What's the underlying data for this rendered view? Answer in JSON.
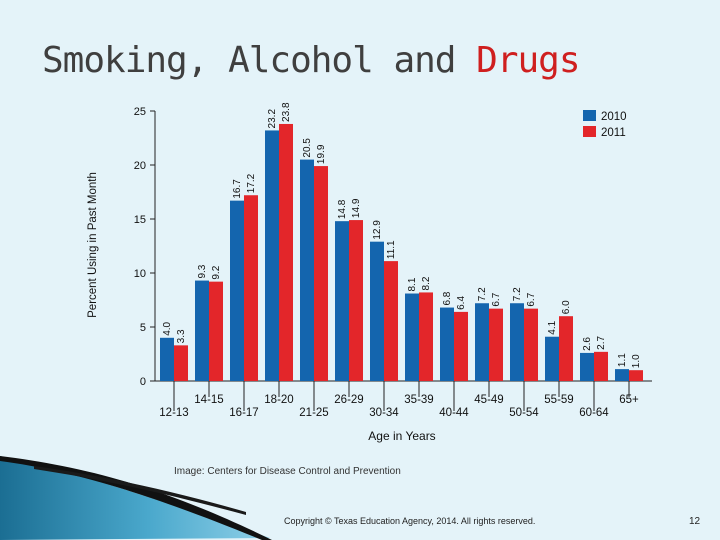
{
  "slide": {
    "title_main": "Smoking, Alcohol and ",
    "title_accent": "Drugs",
    "copyright": "Copyright © Texas Education Agency, 2014. All rights reserved.",
    "page_number": "12"
  },
  "colors": {
    "series_2010": "#1465ae",
    "series_2011": "#e3262a",
    "title_accent": "#cf1f1f",
    "background": "#e4f3f9"
  },
  "chart_data": {
    "type": "bar",
    "title": "",
    "ylabel": "Percent Using in Past Month",
    "xlabel": "Age in Years",
    "source": "Image: Centers for Disease Control and Prevention",
    "ylim": [
      0,
      25
    ],
    "yticks": [
      0,
      5,
      10,
      15,
      20,
      25
    ],
    "categories": [
      "12-13",
      "14-15",
      "16-17",
      "18-20",
      "21-25",
      "26-29",
      "30-34",
      "35-39",
      "40-44",
      "45-49",
      "50-54",
      "55-59",
      "60-64",
      "65+"
    ],
    "series": [
      {
        "name": "2010",
        "values": [
          4.0,
          9.3,
          16.7,
          23.2,
          20.5,
          14.8,
          12.9,
          8.1,
          6.8,
          7.2,
          7.2,
          4.1,
          2.6,
          1.1
        ]
      },
      {
        "name": "2011",
        "values": [
          3.3,
          9.2,
          17.2,
          23.8,
          19.9,
          14.9,
          11.1,
          8.2,
          6.4,
          6.7,
          6.7,
          6.0,
          2.7,
          1.0
        ]
      }
    ],
    "bar_labels": [
      [
        "4.0",
        "9.3",
        "16.7",
        "23.2",
        "20.5",
        "14.8",
        "12.9",
        "8.1",
        "6.8",
        "7.2",
        "7.2",
        "4.1",
        "2.6",
        "1.1"
      ],
      [
        "3.3",
        "9.2",
        "17.2",
        "23.8",
        "19.9",
        "14.9",
        "11.1",
        "8.2",
        "6.4",
        "6.7",
        "6.7",
        "6.0",
        "2.7",
        "1.0"
      ]
    ],
    "legend": [
      "2010",
      "2011"
    ],
    "legend_position": "top-right",
    "grid": false
  }
}
